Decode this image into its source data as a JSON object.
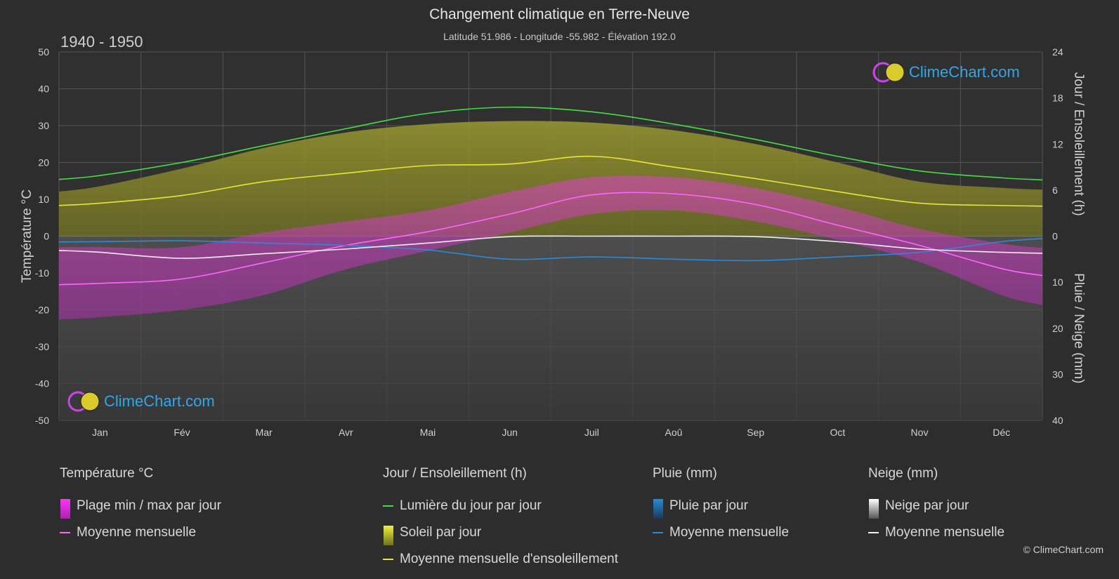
{
  "header": {
    "title": "Changement climatique en Terre-Neuve",
    "subtitle": "Latitude 51.986 - Longitude -55.982 - Élévation 192.0",
    "period": "1940 - 1950"
  },
  "branding": {
    "logo_text": "ClimeChart.com",
    "copyright": "© ClimeChart.com"
  },
  "colors": {
    "background": "#2d2d2d",
    "grid": "#555555",
    "daylight": "#44dd44",
    "sunshine_mean": "#e6e633",
    "sunshine_fill": "#8a8a2a",
    "temp_mean": "#ff66ff",
    "temp_range": "#cc33cc",
    "rain_mean": "#2a8ad8",
    "rain_fill": "#1f5f8f",
    "snow_mean": "#eeeeee",
    "snow_fill": "#777777",
    "logo": "#2fa7e8"
  },
  "legend": {
    "temperature": {
      "heading": "Température °C",
      "items": [
        {
          "label": "Plage min / max par jour",
          "icon": "magenta-gradient-box"
        },
        {
          "label": "Moyenne mensuelle",
          "icon": "pink-line"
        }
      ]
    },
    "sun": {
      "heading": "Jour / Ensoleillement (h)",
      "items": [
        {
          "label": "Lumière du jour par jour",
          "icon": "green-line"
        },
        {
          "label": "Soleil par jour",
          "icon": "yellow-gradient-box"
        },
        {
          "label": "Moyenne mensuelle d'ensoleillement",
          "icon": "yellow-line"
        }
      ]
    },
    "rain": {
      "heading": "Pluie (mm)",
      "items": [
        {
          "label": "Pluie par jour",
          "icon": "blue-gradient-box"
        },
        {
          "label": "Moyenne mensuelle",
          "icon": "blue-line"
        }
      ]
    },
    "snow": {
      "heading": "Neige (mm)",
      "items": [
        {
          "label": "Neige par jour",
          "icon": "white-gradient-box"
        },
        {
          "label": "Moyenne mensuelle",
          "icon": "white-line"
        }
      ]
    }
  },
  "chart_data": {
    "type": "line",
    "categories": [
      "Jan",
      "Fév",
      "Mar",
      "Avr",
      "Mai",
      "Jun",
      "Juil",
      "Aoû",
      "Sep",
      "Oct",
      "Nov",
      "Déc"
    ],
    "left_axis": {
      "label": "Température °C",
      "range": [
        -50,
        50
      ],
      "ticks": [
        50,
        40,
        30,
        20,
        10,
        0,
        -10,
        -20,
        -30,
        -40,
        -50
      ]
    },
    "right_axis_top": {
      "label": "Jour / Ensoleillement (h)",
      "range": [
        0,
        24
      ],
      "ticks": [
        24,
        18,
        12,
        6,
        0
      ]
    },
    "right_axis_bottom": {
      "label": "Pluie / Neige (mm)",
      "range": [
        0,
        40
      ],
      "ticks": [
        0,
        10,
        20,
        30,
        40
      ]
    },
    "grid": true,
    "series": [
      {
        "name": "Lumière du jour par jour",
        "axis": "sun_h",
        "values": [
          7.9,
          9.6,
          11.8,
          14.0,
          16.0,
          16.8,
          16.2,
          14.6,
          12.6,
          10.4,
          8.5,
          7.6
        ]
      },
      {
        "name": "Soleil par jour",
        "axis": "sun_h",
        "values": [
          6.5,
          8.8,
          11.5,
          13.5,
          14.6,
          15.0,
          14.8,
          13.8,
          12.0,
          9.6,
          7.1,
          6.3
        ]
      },
      {
        "name": "Moyenne mensuelle d'ensoleillement",
        "axis": "sun_h",
        "values": [
          4.3,
          5.3,
          7.1,
          8.2,
          9.2,
          9.4,
          10.4,
          9.0,
          7.5,
          5.8,
          4.3,
          4.0
        ]
      },
      {
        "name": "Moyenne mensuelle",
        "metric": "temperature",
        "axis": "temp_c",
        "values": [
          -12.8,
          -11.6,
          -7.2,
          -2.5,
          1.2,
          6.0,
          11.2,
          11.5,
          8.6,
          3.0,
          -2.5,
          -8.8
        ]
      },
      {
        "name": "Plage min / max par jour",
        "metric": "temperature_range",
        "axis": "temp_c",
        "min": [
          -22,
          -20,
          -16,
          -9,
          -4,
          1,
          6,
          7,
          4,
          -1,
          -7,
          -16
        ],
        "max": [
          -3,
          -3,
          1,
          4,
          7,
          12,
          16,
          16,
          13,
          8,
          2,
          -2
        ]
      },
      {
        "name": "Moyenne mensuelle",
        "metric": "rain",
        "axis": "precip_mm",
        "values": [
          1.2,
          1.0,
          1.5,
          2.0,
          3.0,
          5.0,
          4.5,
          5.0,
          5.3,
          4.5,
          3.5,
          1.2
        ]
      },
      {
        "name": "Moyenne mensuelle",
        "metric": "snow",
        "axis": "precip_mm",
        "values": [
          3.5,
          4.8,
          3.8,
          2.8,
          1.5,
          0.1,
          0.0,
          0.0,
          0.1,
          1.2,
          2.8,
          3.5
        ]
      }
    ]
  }
}
